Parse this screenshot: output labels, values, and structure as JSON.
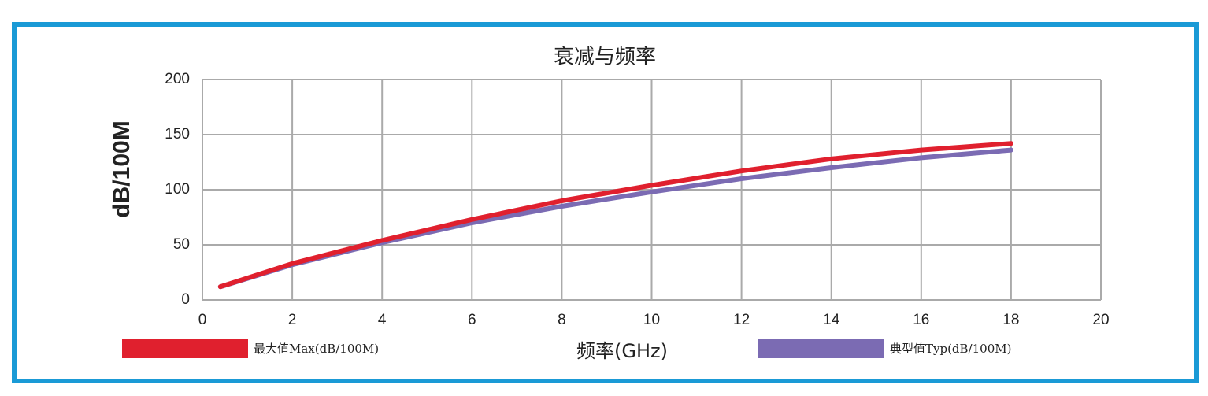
{
  "chart_data": {
    "type": "line",
    "title": "衰减与频率",
    "x_label": "频率(GHz)",
    "y_label": "dB/100M",
    "x": [
      0.4,
      2,
      4,
      6,
      8,
      10,
      12,
      14,
      16,
      18
    ],
    "series": [
      {
        "name": "典型值Typ(dB/100M)",
        "color": "#7b6bb3",
        "values": [
          12,
          32,
          52,
          70,
          85,
          98,
          110,
          120,
          129,
          136
        ]
      },
      {
        "name": "最大值Max(dB/100M)",
        "color": "#e0202e",
        "values": [
          12,
          33,
          54,
          73,
          90,
          104,
          117,
          128,
          136,
          142
        ]
      }
    ],
    "xlim": [
      0,
      20
    ],
    "xticks": [
      0,
      2,
      4,
      6,
      8,
      10,
      12,
      14,
      16,
      18,
      20
    ],
    "ylim": [
      0,
      200
    ],
    "yticks": [
      0,
      50,
      100,
      150,
      200
    ],
    "grid": true
  }
}
